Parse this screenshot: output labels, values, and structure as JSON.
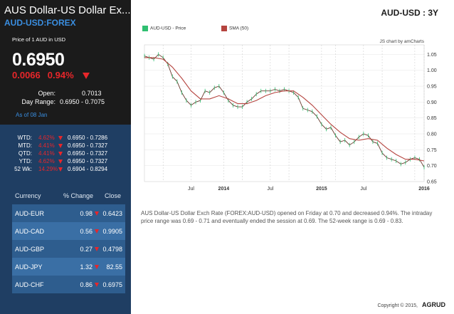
{
  "header": {
    "title": "AUS Dollar-US Dollar Ex...",
    "symbol": "AUD-USD:FOREX",
    "unit": "Price of 1 AUD in USD"
  },
  "quote": {
    "price": "0.6950",
    "change": "0.0066",
    "change_pct": "0.94%",
    "open_label": "Open:",
    "open": "0.7013",
    "range_label": "Day Range:",
    "range": "0.6950 - 0.7075",
    "as_of": "As of 08 Jan"
  },
  "performance": [
    {
      "label": "WTD:",
      "pct": "4.62%",
      "range": "0.6950 - 0.7286"
    },
    {
      "label": "MTD:",
      "pct": "4.41%",
      "range": "0.6950 - 0.7327"
    },
    {
      "label": "QTD:",
      "pct": "4.41%",
      "range": "0.6950 - 0.7327"
    },
    {
      "label": "YTD:",
      "pct": "4.62%",
      "range": "0.6950 - 0.7327"
    },
    {
      "label": "52 Wk:",
      "pct": "14.29%",
      "range": "0.6904 - 0.8294"
    }
  ],
  "currency_table": {
    "headers": [
      "Currency",
      "% Change",
      "Close"
    ],
    "rows": [
      {
        "currency": "AUD-EUR",
        "change": "0.98",
        "dir": "down",
        "close": "0.6423"
      },
      {
        "currency": "AUD-CAD",
        "change": "0.56",
        "dir": "down",
        "close": "0.9905"
      },
      {
        "currency": "AUD-GBP",
        "change": "0.27",
        "dir": "down",
        "close": "0.4798"
      },
      {
        "currency": "AUD-JPY",
        "change": "1.32",
        "dir": "down",
        "close": "82.55"
      },
      {
        "currency": "AUD-CHF",
        "change": "0.86",
        "dir": "down",
        "close": "0.6975"
      }
    ]
  },
  "chart_header": "AUD-USD : 3Y",
  "colors": {
    "down": "#e8262a",
    "price_series": "#2fbf71",
    "sma_series": "#b5443f",
    "accent": "#3a8ee0",
    "panel": "#1b1b1b",
    "panel_blue": "#1f3e63"
  },
  "chart_data": {
    "type": "line",
    "credit": "JS chart by amCharts",
    "legend": [
      "AUD-USD - Price",
      "SMA (50)"
    ],
    "x_ticks": [
      "Jul",
      "2014",
      "Jul",
      "2015",
      "Jul",
      "2016"
    ],
    "y_ticks": [
      "0.65",
      "0.70",
      "0.75",
      "0.80",
      "0.85",
      "0.90",
      "0.95",
      "1.00",
      "1.05"
    ],
    "ylim": [
      0.65,
      1.08
    ],
    "xlim": [
      2013.0,
      2016.0
    ],
    "series": [
      {
        "name": "AUD-USD - Price",
        "x": [
          2013.0,
          2013.05,
          2013.1,
          2013.15,
          2013.2,
          2013.25,
          2013.3,
          2013.35,
          2013.4,
          2013.45,
          2013.5,
          2013.55,
          2013.6,
          2013.65,
          2013.7,
          2013.75,
          2013.8,
          2013.85,
          2013.9,
          2013.95,
          2014.0,
          2014.05,
          2014.1,
          2014.15,
          2014.2,
          2014.25,
          2014.3,
          2014.35,
          2014.4,
          2014.45,
          2014.5,
          2014.55,
          2014.6,
          2014.65,
          2014.7,
          2014.75,
          2014.8,
          2014.85,
          2014.9,
          2014.95,
          2015.0,
          2015.05,
          2015.1,
          2015.15,
          2015.2,
          2015.25,
          2015.3,
          2015.35,
          2015.4,
          2015.45,
          2015.5,
          2015.55,
          2015.6,
          2015.65,
          2015.7,
          2015.75,
          2015.8,
          2015.85,
          2015.9,
          2015.95,
          2016.0
        ],
        "y": [
          1.045,
          1.04,
          1.035,
          1.05,
          1.04,
          1.02,
          0.98,
          0.965,
          0.93,
          0.905,
          0.89,
          0.9,
          0.905,
          0.935,
          0.93,
          0.945,
          0.95,
          0.93,
          0.905,
          0.89,
          0.885,
          0.885,
          0.9,
          0.91,
          0.925,
          0.935,
          0.935,
          0.935,
          0.94,
          0.935,
          0.94,
          0.935,
          0.93,
          0.915,
          0.88,
          0.875,
          0.87,
          0.855,
          0.83,
          0.815,
          0.82,
          0.795,
          0.775,
          0.78,
          0.765,
          0.775,
          0.79,
          0.8,
          0.795,
          0.775,
          0.77,
          0.74,
          0.725,
          0.72,
          0.715,
          0.705,
          0.71,
          0.72,
          0.725,
          0.72,
          0.695
        ]
      },
      {
        "name": "SMA (50)",
        "x": [
          2013.0,
          2013.1,
          2013.2,
          2013.3,
          2013.4,
          2013.5,
          2013.6,
          2013.7,
          2013.8,
          2013.9,
          2014.0,
          2014.1,
          2014.2,
          2014.3,
          2014.4,
          2014.5,
          2014.6,
          2014.7,
          2014.8,
          2014.9,
          2015.0,
          2015.1,
          2015.2,
          2015.3,
          2015.4,
          2015.5,
          2015.6,
          2015.7,
          2015.8,
          2015.9,
          2016.0
        ],
        "y": [
          1.04,
          1.04,
          1.035,
          1.01,
          0.975,
          0.935,
          0.91,
          0.91,
          0.92,
          0.91,
          0.895,
          0.895,
          0.905,
          0.92,
          0.93,
          0.935,
          0.935,
          0.915,
          0.89,
          0.86,
          0.83,
          0.805,
          0.785,
          0.78,
          0.785,
          0.78,
          0.755,
          0.735,
          0.72,
          0.72,
          0.715
        ]
      }
    ]
  },
  "description": "AUS Dollar-US Dollar Exch Rate (FOREX:AUD-USD) opened on Friday at 0.70 and decreased 0.94%. The intraday price range was 0.69 - 0.71 and eventually ended the session at 0.69. The 52-week range is 0.69 - 0.83.",
  "footer": {
    "copyright": "Copyright © 2015,",
    "brand": "AGRUD"
  }
}
